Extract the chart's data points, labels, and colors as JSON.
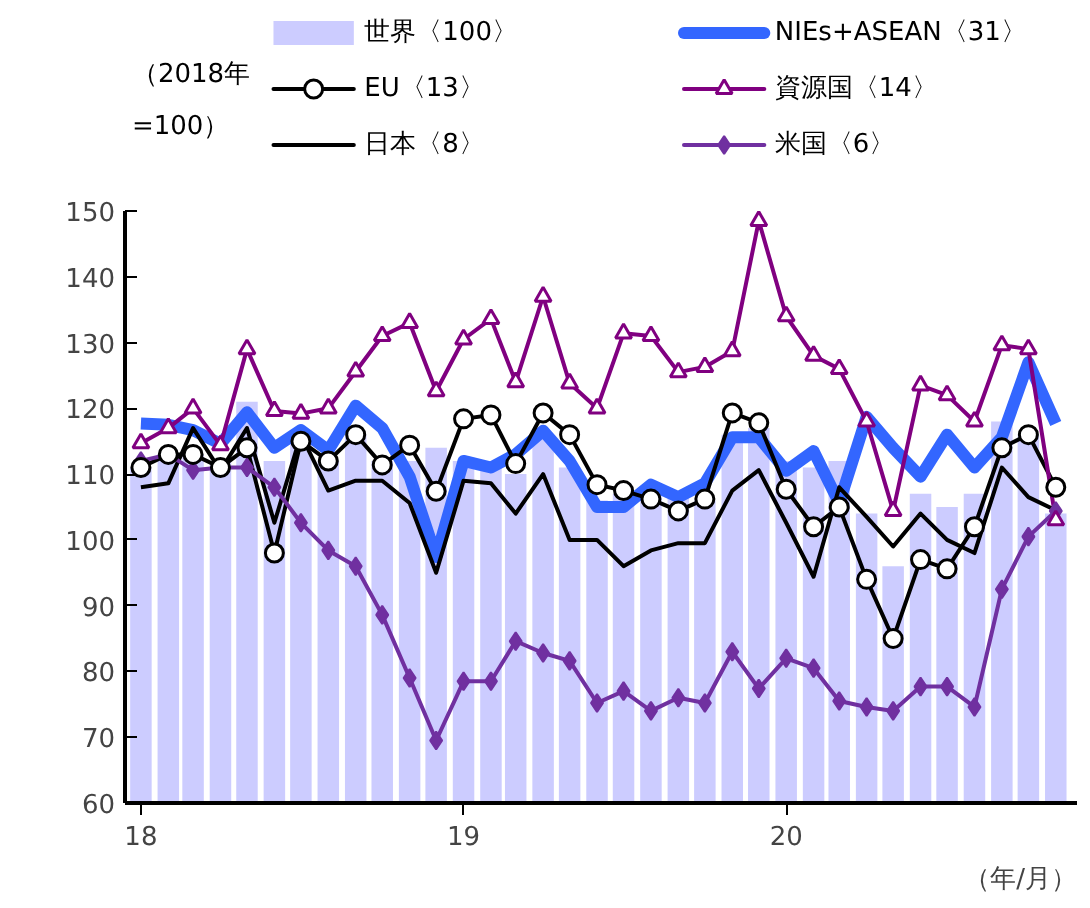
{
  "chart_data": {
    "type": "line",
    "ylabel": "（2018年\n=100）",
    "xlabel": "（年/月）",
    "x": [
      "2018-01",
      "2018-02",
      "2018-03",
      "2018-04",
      "2018-05",
      "2018-06",
      "2018-07",
      "2018-08",
      "2018-09",
      "2018-10",
      "2018-11",
      "2018-12",
      "2019-01",
      "2019-02",
      "2019-03",
      "2019-04",
      "2019-05",
      "2019-06",
      "2019-07",
      "2019-08",
      "2019-09",
      "2019-10",
      "2019-11",
      "2019-12",
      "2020-01",
      "2020-02",
      "2020-03",
      "2020-04",
      "2020-05",
      "2020-06",
      "2020-07",
      "2020-08",
      "2020-09",
      "2020-10",
      "2020-11"
    ],
    "series": [
      {
        "name": "世界〈100〉",
        "type": "bar",
        "color": "#ccccff",
        "values": [
          111,
          113,
          113,
          112,
          121,
          112,
          115,
          112,
          116,
          112,
          112,
          114,
          112,
          112,
          110,
          116,
          111,
          106,
          107,
          107,
          107,
          106,
          116,
          117,
          112,
          111,
          112,
          104,
          96,
          107,
          105,
          107,
          118,
          116,
          104
        ]
      },
      {
        "name": "NIEs+ASEAN〈31〉",
        "color": "#3366ff",
        "marker": "none",
        "values": [
          117.7,
          117.5,
          116.7,
          114.6,
          119.4,
          114,
          116.7,
          113.6,
          120.4,
          117,
          109.6,
          97.4,
          112,
          111,
          113,
          116.6,
          112,
          105,
          105,
          108.4,
          106.5,
          108.6,
          115.6,
          115.6,
          110.5,
          113.5,
          105.6,
          118.7,
          114,
          109.6,
          116,
          111,
          115.6,
          127,
          117.7
        ]
      },
      {
        "name": "EU〈13〉",
        "color": "#000000",
        "marker": "circle",
        "values": [
          111,
          113,
          113,
          111,
          114,
          98,
          115,
          112,
          116,
          111.4,
          114.4,
          107.4,
          118.4,
          119,
          111.6,
          119.3,
          116,
          108.4,
          107.5,
          106.2,
          104.4,
          106.2,
          119.3,
          117.8,
          107.7,
          102,
          105,
          94,
          85,
          97,
          95.6,
          102,
          114,
          116,
          108
        ]
      },
      {
        "name": "資源国〈14〉",
        "color": "#800080",
        "marker": "triangle",
        "values": [
          114.7,
          117,
          120,
          114.4,
          129,
          119.6,
          119.2,
          120,
          125.6,
          131,
          133,
          122.6,
          130.5,
          133.6,
          124,
          137,
          123.8,
          120,
          131.4,
          131,
          125.5,
          126.3,
          128.7,
          148.5,
          134,
          128,
          126,
          118,
          104.4,
          123.5,
          122,
          118,
          129.6,
          129,
          103
        ]
      },
      {
        "name": "日本〈8〉",
        "color": "#000000",
        "marker": "none",
        "values": [
          108,
          108.6,
          117,
          110.5,
          117,
          102.6,
          116,
          107.5,
          109,
          109,
          105.6,
          95,
          109,
          108.6,
          104,
          110,
          100,
          100,
          96,
          98.4,
          99.5,
          99.5,
          107.5,
          110.6,
          102.6,
          94.4,
          108,
          103.5,
          99,
          104,
          100,
          98,
          111,
          106.5,
          104.5
        ]
      },
      {
        "name": "米国〈6〉",
        "color": "#7030a0",
        "marker": "diamond",
        "values": [
          112,
          113,
          110.6,
          111,
          111,
          108,
          102.6,
          98.4,
          96,
          88.6,
          79,
          69.5,
          78.5,
          78.5,
          84.6,
          82.8,
          81.6,
          75.2,
          77,
          74,
          76,
          75.2,
          83,
          77.4,
          82,
          80.5,
          75.5,
          74.6,
          74,
          77.7,
          77.7,
          74.6,
          92.5,
          100.5,
          104.4
        ]
      }
    ],
    "xlim": [
      "2017-12-14",
      "2020-11-25"
    ],
    "xticks": [
      {
        "value": "2018-01",
        "label": "18"
      },
      {
        "value": "2019-01",
        "label": "19"
      },
      {
        "value": "2020-01",
        "label": "20"
      }
    ],
    "ylim": [
      60,
      150
    ],
    "yticks": [
      60,
      70,
      80,
      90,
      100,
      110,
      120,
      130,
      140,
      150
    ],
    "grid": false,
    "legend": "top"
  }
}
